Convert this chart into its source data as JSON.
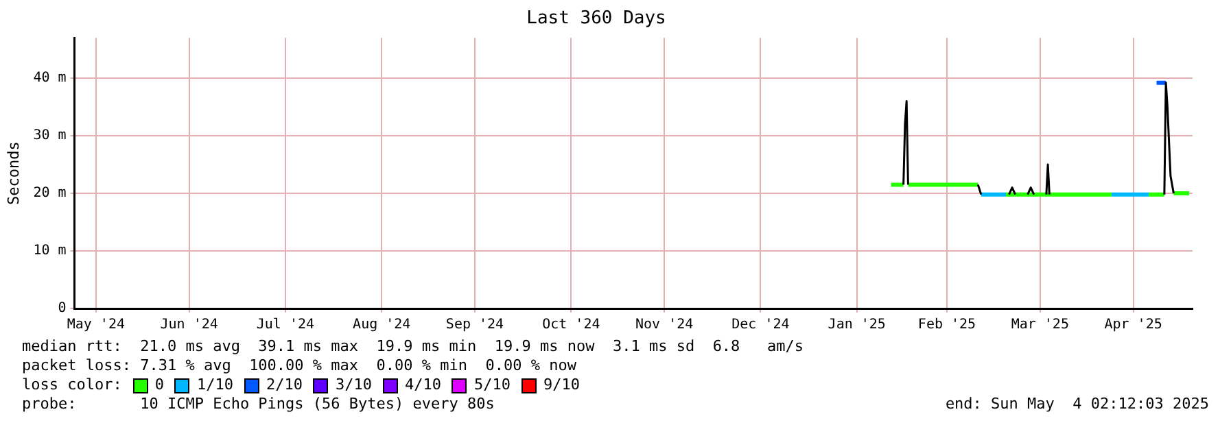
{
  "chart_data": {
    "type": "line",
    "title": "Last 360 Days",
    "ylabel": "Seconds",
    "legend_title": "loss color:",
    "legend": "bottom",
    "grid": true,
    "marker": "none",
    "line_style": "solid",
    "xlim": [
      "2024-05-09T02:12",
      "2025-05-04T02:12"
    ],
    "xticks": [
      {
        "value": "2024-05-16",
        "label": "May '24"
      },
      {
        "value": "2024-06-15",
        "label": "Jun '24"
      },
      {
        "value": "2024-07-16",
        "label": "Jul '24"
      },
      {
        "value": "2024-08-16",
        "label": "Aug '24"
      },
      {
        "value": "2024-09-15",
        "label": "Sep '24"
      },
      {
        "value": "2024-10-16",
        "label": "Oct '24"
      },
      {
        "value": "2024-11-15",
        "label": "Nov '24"
      },
      {
        "value": "2024-12-16",
        "label": "Dec '24"
      },
      {
        "value": "2025-01-16",
        "label": "Jan '25"
      },
      {
        "value": "2025-02-14",
        "label": "Feb '25"
      },
      {
        "value": "2025-03-16",
        "label": "Mar '25"
      },
      {
        "value": "2025-04-15",
        "label": "Apr '25"
      }
    ],
    "ylim": [
      0,
      47
    ],
    "yticks": [
      0,
      {
        "value": 10,
        "label": "10 m"
      },
      {
        "value": 20,
        "label": "20 m"
      },
      {
        "value": 30,
        "label": "30 m"
      },
      {
        "value": 40,
        "label": "40 m"
      }
    ],
    "series": [
      {
        "color": "#000000",
        "x": [
          "2025-01-31",
          "2025-01-31T12:00",
          "2025-02-01",
          "2025-02-01T12:00",
          "2025-02-10",
          "2025-02-24",
          "2025-02-25",
          "2025-03-01",
          "2025-03-06",
          "2025-03-07",
          "2025-03-08",
          "2025-03-10",
          "2025-03-12",
          "2025-03-13",
          "2025-03-14",
          "2025-03-16",
          "2025-03-18",
          "2025-03-18T12:00",
          "2025-03-19",
          "2025-04-10",
          "2025-04-25",
          "2025-04-25T12:00",
          "2025-04-26",
          "2025-04-27",
          "2025-04-28"
        ],
        "values": [
          21.5,
          32,
          36,
          21.5,
          null,
          21.5,
          19.8,
          null,
          19.8,
          21,
          19.8,
          null,
          19.8,
          21,
          19.8,
          null,
          19.8,
          25,
          19.8,
          null,
          19.8,
          39.2,
          35,
          23,
          20
        ]
      },
      {
        "name": "0",
        "color": "#26ff00",
        "x": [
          "2025-01-27",
          "2025-01-31",
          "2025-01-31T12:00",
          "2025-02-01T12:00",
          "2025-02-24",
          "2025-02-24T12:00",
          "2025-03-05",
          "2025-04-08",
          "2025-04-14",
          "2025-04-20",
          "2025-04-25",
          "2025-04-26",
          "2025-04-28",
          "2025-05-03"
        ],
        "values": [
          21.5,
          21.5,
          null,
          21.5,
          21.5,
          null,
          19.8,
          19.8,
          null,
          19.8,
          19.8,
          null,
          20,
          20
        ]
      },
      {
        "name": "1/10",
        "color": "#00b8ff",
        "x": [
          "2025-02-25",
          "2025-03-05",
          "2025-03-20",
          "2025-04-08",
          "2025-04-20"
        ],
        "values": [
          19.8,
          19.8,
          null,
          19.8,
          19.8
        ]
      },
      {
        "name": "2/10",
        "color": "#0059ff",
        "x": [
          "2025-04-22T12:00",
          "2025-04-25T12:00"
        ],
        "values": [
          39.2,
          39.2
        ]
      },
      {
        "name": "3/10",
        "color": "#5e00ff"
      },
      {
        "name": "4/10",
        "color": "#7e00ff"
      },
      {
        "name": "5/10",
        "color": "#dd00ff"
      },
      {
        "name": "9/10",
        "color": "#ff0000"
      }
    ],
    "annotations": [
      "median rtt:  21.0 ms avg  39.1 ms max  19.9 ms min  19.9 ms now  3.1 ms sd  6.8   am/s",
      "packet loss: 7.31 % avg  100.00 % max  0.00 % min  0.00 % now",
      "probe:       10 ICMP Echo Pings (56 Bytes) every 80s",
      "end: Sun May  4 02:12:03 2025"
    ]
  }
}
